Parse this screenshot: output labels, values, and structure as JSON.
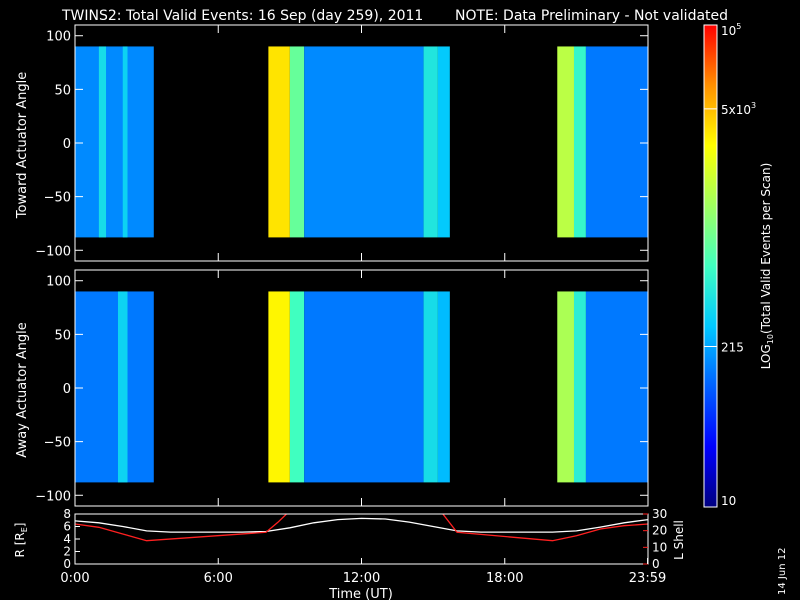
{
  "title": "TWINS2: Total Valid Events: 16 Sep (day 259), 2011",
  "note": "NOTE: Data Preliminary - Not validated",
  "note_color": "#ff2020",
  "date_stamp": "14 Jun 12",
  "chart_data": [
    {
      "type": "heatmap",
      "ylabel": "Toward Actuator Angle",
      "ylim": [
        -110,
        110
      ],
      "yticks": [
        100,
        50,
        0,
        -50,
        -100
      ],
      "data_angle_range": [
        -88,
        90
      ],
      "xlim": [
        0,
        24
      ],
      "coverage_hours": [
        [
          0,
          3.3
        ],
        [
          8.1,
          15.7
        ],
        [
          20.2,
          24
        ]
      ],
      "cells": [
        {
          "t": [
            0.0,
            3.3
          ],
          "level": 0.3
        },
        {
          "t": [
            1.0,
            1.3
          ],
          "level": 0.42
        },
        {
          "t": [
            2.0,
            2.2
          ],
          "level": 0.4
        },
        {
          "t": [
            8.1,
            9.0
          ],
          "level": 0.78
        },
        {
          "t": [
            9.0,
            9.6
          ],
          "level": 0.55
        },
        {
          "t": [
            9.6,
            14.6
          ],
          "level": 0.3
        },
        {
          "t": [
            14.6,
            15.2
          ],
          "level": 0.44
        },
        {
          "t": [
            15.2,
            15.7
          ],
          "level": 0.38
        },
        {
          "t": [
            20.2,
            20.9
          ],
          "level": 0.66
        },
        {
          "t": [
            20.9,
            21.4
          ],
          "level": 0.48
        },
        {
          "t": [
            21.4,
            24.0
          ],
          "level": 0.28
        }
      ]
    },
    {
      "type": "heatmap",
      "ylabel": "Away Actuator Angle",
      "ylim": [
        -110,
        110
      ],
      "yticks": [
        100,
        50,
        0,
        -50,
        -100
      ],
      "data_angle_range": [
        -88,
        90
      ],
      "xlim": [
        0,
        24
      ],
      "coverage_hours": [
        [
          0,
          3.3
        ],
        [
          8.1,
          15.7
        ],
        [
          20.2,
          24
        ]
      ],
      "cells": [
        {
          "t": [
            0.0,
            3.3
          ],
          "level": 0.28
        },
        {
          "t": [
            1.8,
            2.2
          ],
          "level": 0.4
        },
        {
          "t": [
            8.1,
            9.0
          ],
          "level": 0.76
        },
        {
          "t": [
            9.0,
            9.6
          ],
          "level": 0.5
        },
        {
          "t": [
            9.6,
            14.6
          ],
          "level": 0.28
        },
        {
          "t": [
            14.6,
            15.2
          ],
          "level": 0.42
        },
        {
          "t": [
            15.2,
            15.7
          ],
          "level": 0.36
        },
        {
          "t": [
            20.2,
            20.9
          ],
          "level": 0.64
        },
        {
          "t": [
            20.9,
            21.4
          ],
          "level": 0.46
        },
        {
          "t": [
            21.4,
            24.0
          ],
          "level": 0.28
        }
      ]
    },
    {
      "type": "line",
      "ylabel": "R [R",
      "ylabel_sub": "E",
      "ylabel_close": "]",
      "ylabel_right": "L Shell",
      "ylim": [
        0,
        8
      ],
      "yticks": [
        0,
        2,
        4,
        6,
        8
      ],
      "ylim_right": [
        0,
        30
      ],
      "yticks_right": [
        0,
        10,
        20,
        30
      ],
      "xlabel": "Time (UT)",
      "xlim": [
        0,
        24
      ],
      "xtick_labels": [
        {
          "t": 0,
          "label": "0:00"
        },
        {
          "t": 6,
          "label": "6:00"
        },
        {
          "t": 12,
          "label": "12:00"
        },
        {
          "t": 18,
          "label": "18:00"
        },
        {
          "t": 23.98,
          "label": "23:59"
        }
      ],
      "series": [
        {
          "color": "#ffffff",
          "x": [
            0,
            1,
            2,
            3,
            4,
            5,
            6,
            7,
            8,
            9,
            10,
            11,
            12,
            13,
            14,
            15,
            16,
            17,
            18,
            19,
            20,
            21,
            22,
            23,
            24
          ],
          "y": [
            6.9,
            6.6,
            6.0,
            5.3,
            5.1,
            5.1,
            5.1,
            5.1,
            5.2,
            5.8,
            6.6,
            7.1,
            7.3,
            7.2,
            6.7,
            6.0,
            5.3,
            5.1,
            5.1,
            5.1,
            5.1,
            5.3,
            5.9,
            6.6,
            7.1
          ]
        },
        {
          "color": "#ff2020",
          "axis": "right",
          "x": [
            0,
            1,
            2,
            3,
            8,
            8.5,
            9,
            9.3,
            15.0,
            15.3,
            16,
            20,
            21,
            22,
            23,
            24
          ],
          "y": [
            24,
            22,
            18,
            14,
            19,
            25,
            32,
            34,
            34,
            32,
            19,
            14,
            17,
            21,
            23,
            24
          ]
        }
      ]
    }
  ],
  "colorbar": {
    "ylabel": "LOG",
    "ylabel_sub": "10",
    "ylabel_rest": "(Total Valid Events per Scan)",
    "ticks": [
      {
        "level": 1.0,
        "label": "10",
        "sup": "5"
      },
      {
        "level": 0.826,
        "label": "5x10",
        "sup": "3"
      },
      {
        "level": 0.333,
        "label": "215",
        "sup": ""
      },
      {
        "level": 0.0,
        "label": "10",
        "sup": ""
      }
    ],
    "colors": [
      "#000080",
      "#0000ff",
      "#0060ff",
      "#00c8ff",
      "#40ffc0",
      "#a0ff60",
      "#ffff00",
      "#ff9000",
      "#ff0000"
    ]
  }
}
